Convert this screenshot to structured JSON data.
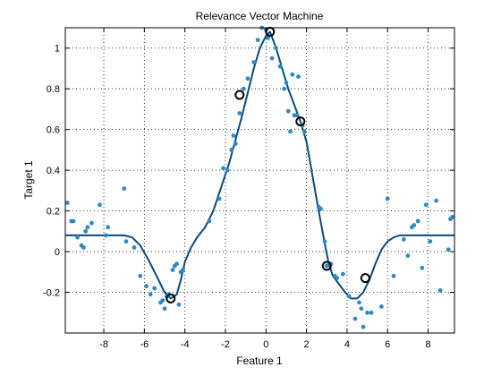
{
  "chart_data": {
    "type": "scatter",
    "title": "Relevance Vector Machine",
    "xlabel": "Feature 1",
    "ylabel": "Target 1",
    "xlim": [
      -9.9,
      9.3
    ],
    "ylim": [
      -0.4,
      1.1
    ],
    "xticks": [
      -8,
      -6,
      -4,
      -2,
      0,
      2,
      4,
      6,
      8
    ],
    "yticks": [
      -0.2,
      0,
      0.2,
      0.4,
      0.6,
      0.8,
      1
    ],
    "ytick_labels": [
      "-0.2",
      "0",
      "0.2",
      "0.4",
      "0.6",
      "0.8",
      "1"
    ],
    "grid": "dotted",
    "colors": {
      "points": "#2e8bc0",
      "curve": "#0b4a7a",
      "relevance": "#000000"
    },
    "series": [
      {
        "kind": "points",
        "x": [
          -9.8,
          -9.6,
          -9.5,
          -9.3,
          -9.1,
          -9.0,
          -8.9,
          -8.8,
          -8.6,
          -8.2,
          -7.9,
          -7.8,
          -7.0,
          -6.9,
          -6.5,
          -6.2,
          -5.9,
          -5.7,
          -5.5,
          -5.2,
          -5.1,
          -5.0,
          -4.9,
          -4.8,
          -4.6,
          -4.5,
          -4.4,
          -4.3,
          -4.2,
          -4.1,
          -2.8,
          -2.3,
          -2.1,
          -1.9,
          -1.7,
          -1.6,
          -1.5,
          -1.3,
          -1.1,
          -0.9,
          -0.6,
          -0.4,
          -0.2,
          0.0,
          0.1,
          0.3,
          0.5,
          0.7,
          0.9,
          1.0,
          1.1,
          1.2,
          1.3,
          1.4,
          1.5,
          1.6,
          1.8,
          1.9,
          2.6,
          2.7,
          2.9,
          3.0,
          3.2,
          3.4,
          3.5,
          3.8,
          4.1,
          4.4,
          4.6,
          4.7,
          4.8,
          5.0,
          5.2,
          5.7,
          6.0,
          6.3,
          6.8,
          7.0,
          7.2,
          7.3,
          7.5,
          7.7,
          7.9,
          8.1,
          8.4,
          8.6,
          9.0,
          9.1,
          9.2
        ],
        "y": [
          0.24,
          0.15,
          0.15,
          0.07,
          0.03,
          0.02,
          0.1,
          0.12,
          0.14,
          0.23,
          0.08,
          0.12,
          0.31,
          0.05,
          0.02,
          -0.12,
          -0.17,
          -0.21,
          -0.18,
          -0.25,
          -0.24,
          -0.28,
          -0.22,
          -0.21,
          -0.09,
          -0.07,
          -0.06,
          -0.26,
          -0.1,
          -0.09,
          0.15,
          0.26,
          0.41,
          0.4,
          0.5,
          0.57,
          0.53,
          0.68,
          0.8,
          0.85,
          0.93,
          1.04,
          1.1,
          1.09,
          1.05,
          0.95,
          1.0,
          0.91,
          0.8,
          0.83,
          0.69,
          0.59,
          0.87,
          0.67,
          0.67,
          0.86,
          0.62,
          0.59,
          0.22,
          0.21,
          0.05,
          -0.07,
          -0.06,
          -0.12,
          -0.13,
          -0.11,
          -0.22,
          -0.33,
          -0.25,
          -0.28,
          -0.37,
          -0.3,
          -0.3,
          -0.27,
          0.26,
          -0.12,
          0.06,
          -0.02,
          0.12,
          0.13,
          0.15,
          -0.08,
          0.23,
          0.05,
          0.25,
          -0.19,
          0.01,
          0.16,
          0.17
        ]
      },
      {
        "kind": "fitted-curve",
        "x": [
          -9.9,
          -7.0,
          -6.6,
          -6.2,
          -5.8,
          -5.4,
          -5.0,
          -4.7,
          -4.4,
          -4.2,
          -4.0,
          -3.7,
          -3.4,
          -3.0,
          -2.6,
          -2.2,
          -1.8,
          -1.5,
          -1.2,
          -0.9,
          -0.6,
          -0.3,
          0.0,
          0.2,
          0.5,
          0.8,
          1.1,
          1.4,
          1.7,
          2.0,
          2.3,
          2.6,
          2.9,
          3.1,
          3.3,
          3.6,
          3.9,
          4.2,
          4.5,
          4.8,
          5.1,
          5.4,
          5.7,
          6.0,
          6.3,
          6.6,
          7.0,
          7.4,
          9.3
        ],
        "y": [
          0.08,
          0.08,
          0.07,
          0.03,
          -0.04,
          -0.12,
          -0.2,
          -0.23,
          -0.21,
          -0.14,
          -0.05,
          0.02,
          0.07,
          0.12,
          0.2,
          0.32,
          0.44,
          0.55,
          0.66,
          0.78,
          0.9,
          1.0,
          1.06,
          1.08,
          1.0,
          0.9,
          0.8,
          0.72,
          0.64,
          0.54,
          0.37,
          0.2,
          0.04,
          -0.06,
          -0.12,
          -0.16,
          -0.2,
          -0.23,
          -0.23,
          -0.2,
          -0.14,
          -0.06,
          0.01,
          0.05,
          0.07,
          0.08,
          0.08,
          0.08,
          0.08
        ]
      },
      {
        "kind": "relevance-vectors",
        "x": [
          -4.7,
          -1.3,
          0.2,
          1.7,
          3.0,
          4.9
        ],
        "y": [
          -0.23,
          0.77,
          1.08,
          0.64,
          -0.07,
          -0.13
        ]
      }
    ]
  }
}
